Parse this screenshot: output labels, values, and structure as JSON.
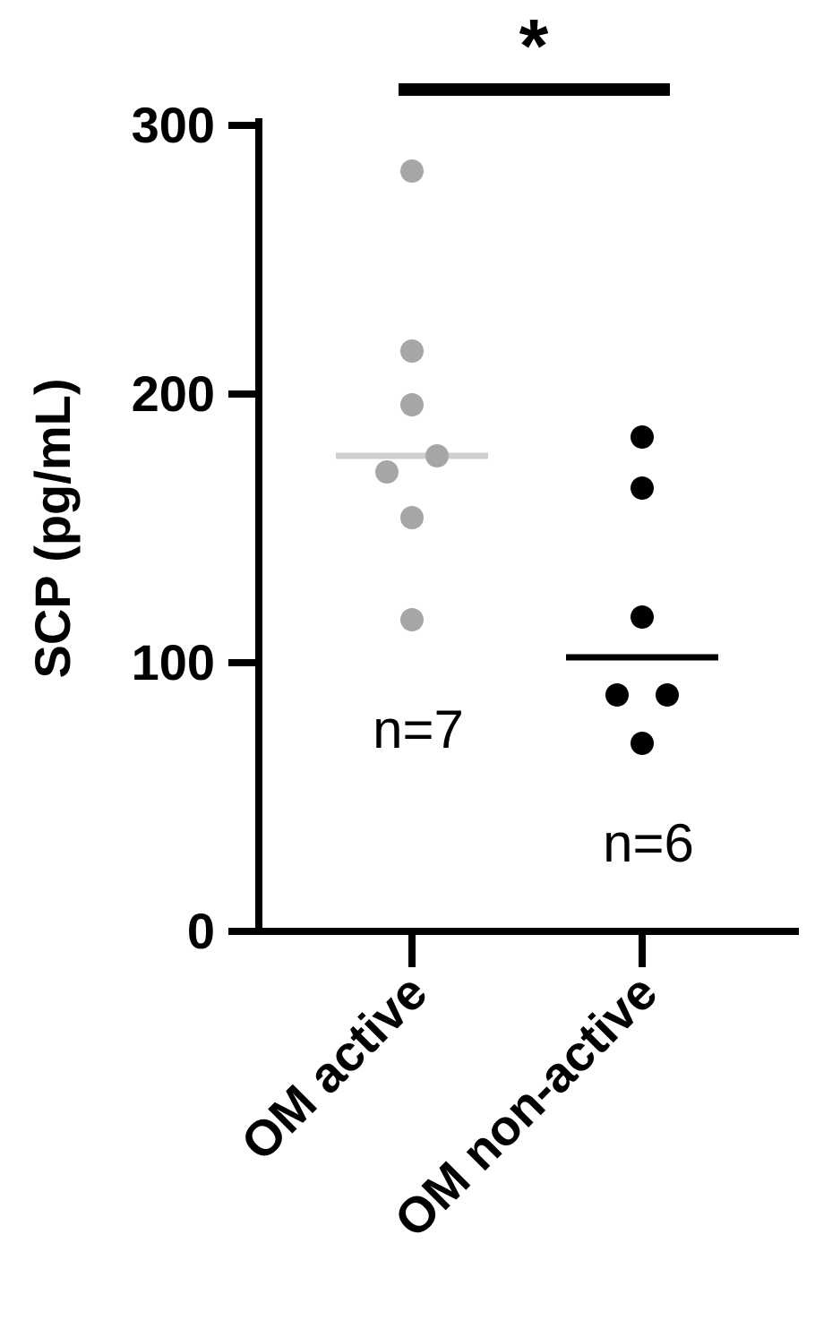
{
  "chart_data": {
    "type": "scatter",
    "ylabel": "SCP (pg/mL)",
    "xlabel": "",
    "ylim": [
      0,
      300
    ],
    "yticks": [
      0,
      100,
      200,
      300
    ],
    "grid": false,
    "categories": [
      "OM active",
      "OM non-active"
    ],
    "series": [
      {
        "category": "OM active",
        "color": "#a6a6a6",
        "mean_color": "#cfcfcf",
        "values": [
          283,
          216,
          196,
          177,
          171,
          154,
          116
        ],
        "mean": 177,
        "n_label": "n=7"
      },
      {
        "category": "OM non-active",
        "color": "#000000",
        "mean_color": "#000000",
        "values": [
          184,
          165,
          117,
          88,
          88,
          70
        ],
        "mean": 102,
        "n_label": "n=6"
      }
    ],
    "significance": {
      "between": [
        "OM active",
        "OM non-active"
      ],
      "label": "*"
    }
  }
}
